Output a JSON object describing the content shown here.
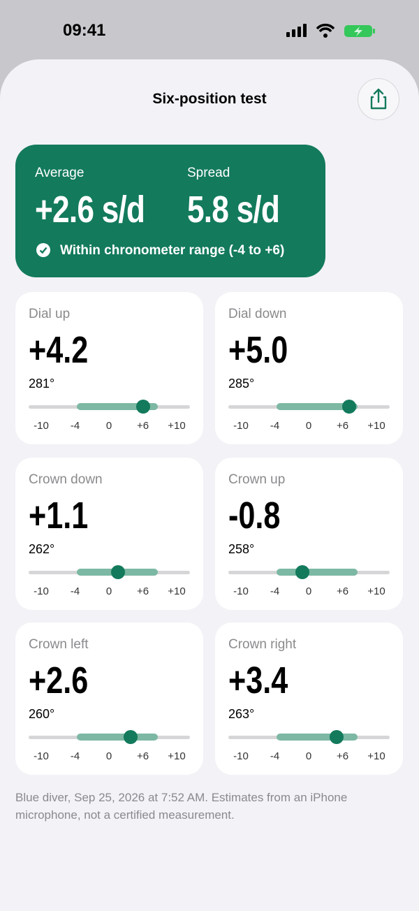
{
  "status_bar": {
    "time": "09:41"
  },
  "header": {
    "title": "Six-position test"
  },
  "summary": {
    "average_label": "Average",
    "average": "+2.6 s/d",
    "spread_label": "Spread",
    "spread": "5.8 s/d",
    "range_note": "Within chronometer range (-4 to +6)"
  },
  "scale": {
    "min": -10,
    "max": 10,
    "band": [
      -4,
      6
    ],
    "ticks": [
      -10,
      -4,
      0,
      {
        "value": 6,
        "label": "+6"
      },
      {
        "value": 10,
        "label": "+10"
      }
    ]
  },
  "positions": [
    {
      "name": "Dial up",
      "rate": {
        "value": 4.2,
        "label": "+4.2"
      },
      "amplitude": "281°"
    },
    {
      "name": "Dial down",
      "rate": {
        "value": 5.0,
        "label": "+5.0"
      },
      "amplitude": "285°"
    },
    {
      "name": "Crown down",
      "rate": {
        "value": 1.1,
        "label": "+1.1"
      },
      "amplitude": "262°"
    },
    {
      "name": "Crown up",
      "rate": {
        "value": -0.8,
        "label": "-0.8"
      },
      "amplitude": "258°"
    },
    {
      "name": "Crown left",
      "rate": {
        "value": 2.6,
        "label": "+2.6"
      },
      "amplitude": "260°"
    },
    {
      "name": "Crown right",
      "rate": {
        "value": 3.4,
        "label": "+3.4"
      },
      "amplitude": "263°"
    }
  ],
  "footer": "Blue diver, Sep 25, 2026 at 7:52 AM. Estimates from an iPhone microphone, not a certified measurement."
}
